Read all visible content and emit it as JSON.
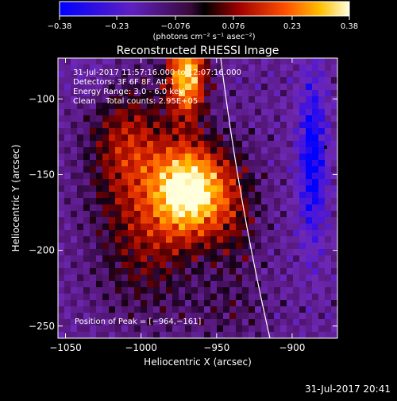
{
  "colorbar": {
    "ticks": [
      "−0.38",
      "−0.23",
      "−0.076",
      "0.076",
      "0.23",
      "0.38"
    ],
    "tick_values": [
      -0.38,
      -0.23,
      -0.076,
      0.076,
      0.23,
      0.38
    ],
    "units": "(photons cm⁻² s⁻¹ asec⁻²)"
  },
  "chart_data": {
    "type": "heatmap",
    "title": "Reconstructed RHESSI Image",
    "xlabel": "Heliocentric X (arcsec)",
    "ylabel": "Heliocentric Y (arcsec)",
    "xlim": [
      -1055,
      -870
    ],
    "ylim": [
      -258,
      -73
    ],
    "x_ticks": [
      -1050,
      -1000,
      -950,
      -900
    ],
    "x_tick_labels": [
      "−1050",
      "−1000",
      "−950",
      "−900"
    ],
    "y_ticks": [
      -100,
      -150,
      -200,
      -250
    ],
    "y_tick_labels": [
      "−100",
      "−150",
      "−200",
      "−250"
    ],
    "value_range": [
      -0.38,
      0.38
    ],
    "peak": [
      -964,
      -161
    ],
    "annotations": [
      "31-Jul-2017 11:57:16.000 to 12:07:16.000",
      "Detectors: 3F 6F 8F, Att 1",
      "Energy Range: 3.0 - 6.0 keV",
      "Clean    Total counts: 2.95E+05"
    ],
    "peak_label": "Position of Peak = [−964,−161]"
  },
  "footer_timestamp": "31-Jul-2017 20:41"
}
